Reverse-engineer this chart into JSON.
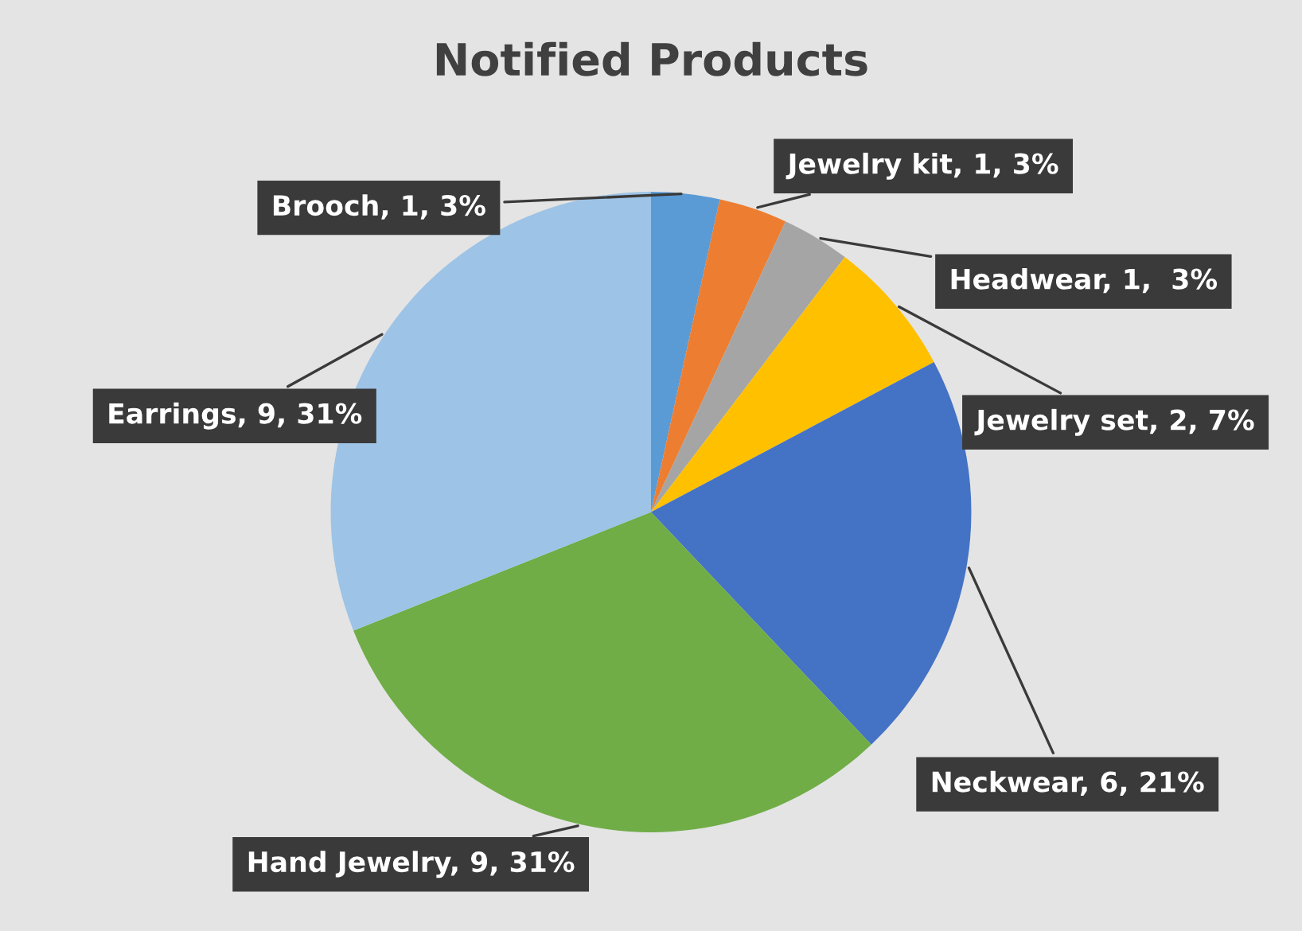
{
  "chart_data": {
    "type": "pie",
    "title": "Notified Products",
    "categories": [
      "Brooch",
      "Jewelry kit",
      "Headwear",
      "Jewelry set",
      "Neckwear",
      "Hand Jewelry",
      "Earrings"
    ],
    "values": [
      1,
      1,
      1,
      2,
      6,
      9,
      9
    ],
    "value_labels": [
      "1, 3%",
      "1, 3%",
      "1,  3%",
      "2, 7%",
      "6, 21%",
      "9, 31%",
      "9, 31%"
    ],
    "colors": [
      "#5b9bd5",
      "#ed7d31",
      "#a5a5a5",
      "#ffc000",
      "#4472c4",
      "#70ad47",
      "#9dc3e6"
    ],
    "legend": false
  }
}
